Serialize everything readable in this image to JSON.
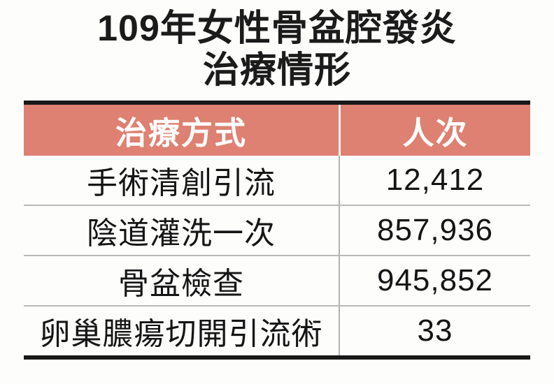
{
  "title": {
    "line1": "109年女性骨盆腔發炎",
    "line2": "治療情形"
  },
  "table": {
    "headers": [
      "治療方式",
      "人次"
    ],
    "rows": [
      {
        "method": "手術清創引流",
        "count": "12,412"
      },
      {
        "method": "陰道灌洗一次",
        "count": "857,936"
      },
      {
        "method": "骨盆檢查",
        "count": "945,852"
      },
      {
        "method": "卵巢膿瘍切開引流術",
        "count": "33"
      }
    ]
  },
  "colors": {
    "header_bg": "#de8172",
    "header_text": "#ffffff",
    "rule_black": "#181818",
    "row_separator": "#b9b9b9",
    "body_text": "#151515"
  },
  "chart_data": {
    "type": "table",
    "title": "109年女性骨盆腔發炎治療情形",
    "columns": [
      "治療方式",
      "人次"
    ],
    "rows": [
      [
        "手術清創引流",
        12412
      ],
      [
        "陰道灌洗一次",
        857936
      ],
      [
        "骨盆檢查",
        945852
      ],
      [
        "卵巢膿瘍切開引流術",
        33
      ]
    ],
    "notes": "Year 109 (ROC calendar) female pelvic inflammatory disease treatment counts"
  }
}
